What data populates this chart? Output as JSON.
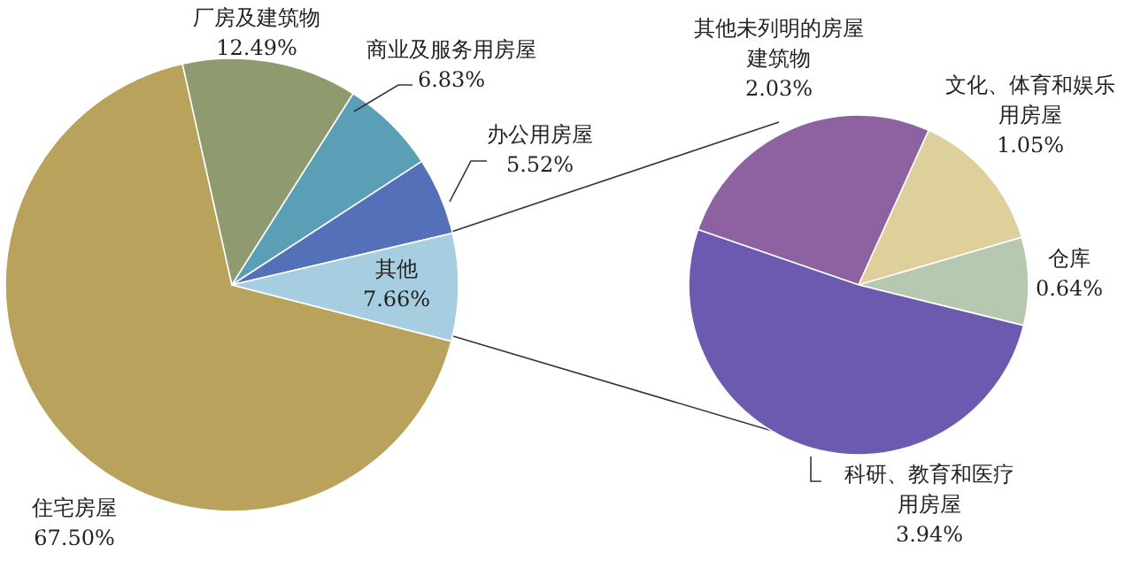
{
  "chart_data": [
    {
      "type": "pie",
      "categories": [
        "住宅房屋",
        "厂房及建筑物",
        "商业及服务用房屋",
        "办公用房屋",
        "其他"
      ],
      "values": [
        67.5,
        12.49,
        6.83,
        5.52,
        7.66
      ],
      "colors": [
        "#b9a25b",
        "#8f9b6e",
        "#5a9fb5",
        "#5470b8",
        "#a6cde0"
      ],
      "value_labels": [
        "67.50%",
        "12.49%",
        "6.83%",
        "5.52%",
        "7.66%"
      ]
    },
    {
      "type": "pie",
      "categories": [
        "其他未列明的房屋建筑物",
        "文化、体育和娱乐用房屋",
        "仓库",
        "科研、教育和医疗用房屋"
      ],
      "values": [
        2.03,
        1.05,
        0.64,
        3.94
      ],
      "colors": [
        "#8e62a0",
        "#ddd09a",
        "#b6c8b0",
        "#6c59b0"
      ],
      "value_labels": [
        "2.03%",
        "1.05%",
        "0.64%",
        "3.94%"
      ]
    }
  ]
}
